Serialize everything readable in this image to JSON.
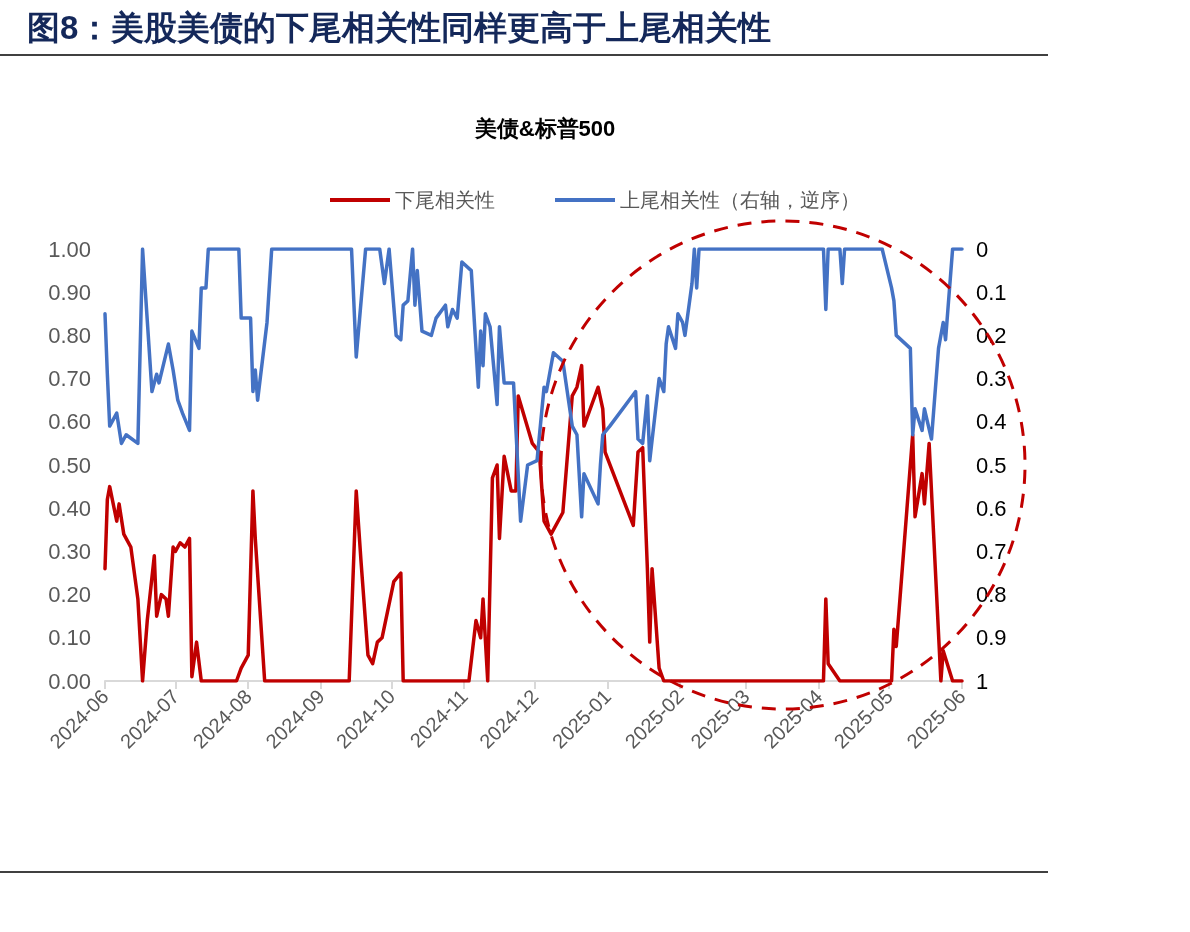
{
  "chart_data": {
    "type": "line",
    "title": "图8：美股美债的下尾相关性同样更高于上尾相关性",
    "subtitle": "美债&标普500",
    "legend": "top",
    "xlim": [
      "2024-06-01",
      "2025-06-01"
    ],
    "xticks": [
      "2024-06",
      "2024-07",
      "2024-08",
      "2024-09",
      "2024-10",
      "2024-11",
      "2024-12",
      "2025-01",
      "2025-02",
      "2025-03",
      "2025-04",
      "2025-05",
      "2025-06"
    ],
    "ylim": [
      0,
      1
    ],
    "yticks": [
      {
        "value": 0,
        "label": "0.00"
      },
      {
        "value": 0.1,
        "label": "0.10"
      },
      {
        "value": 0.2,
        "label": "0.20"
      },
      {
        "value": 0.3,
        "label": "0.30"
      },
      {
        "value": 0.4,
        "label": "0.40"
      },
      {
        "value": 0.5,
        "label": "0.50"
      },
      {
        "value": 0.6,
        "label": "0.60"
      },
      {
        "value": 0.7,
        "label": "0.70"
      },
      {
        "value": 0.8,
        "label": "0.80"
      },
      {
        "value": 0.9,
        "label": "0.90"
      },
      {
        "value": 1,
        "label": "1.00"
      }
    ],
    "y2lim": [
      1,
      0
    ],
    "y2ticks": [
      0,
      0.1,
      0.2,
      0.3,
      0.4,
      0.5,
      0.6,
      0.7,
      0.8,
      0.9,
      1
    ],
    "series": [
      {
        "name": "下尾相关性",
        "color": "#c00000",
        "x": [
          "2024-06-01",
          "2024-06-02",
          "2024-06-03",
          "2024-06-06",
          "2024-06-07",
          "2024-06-09",
          "2024-06-12",
          "2024-06-15",
          "2024-06-17",
          "2024-06-19",
          "2024-06-22",
          "2024-06-23",
          "2024-06-25",
          "2024-06-27",
          "2024-06-28",
          "2024-06-30",
          "2024-07-01",
          "2024-07-03",
          "2024-07-05",
          "2024-07-07",
          "2024-07-08",
          "2024-07-10",
          "2024-07-12",
          "2024-07-27",
          "2024-07-29",
          "2024-08-01",
          "2024-08-03",
          "2024-08-04",
          "2024-08-08",
          "2024-09-13",
          "2024-09-16",
          "2024-09-18",
          "2024-09-21",
          "2024-09-23",
          "2024-09-25",
          "2024-09-27",
          "2024-10-02",
          "2024-10-05",
          "2024-10-06",
          "2024-11-03",
          "2024-11-06",
          "2024-11-08",
          "2024-11-09",
          "2024-11-11",
          "2024-11-13",
          "2024-11-15",
          "2024-11-16",
          "2024-11-18",
          "2024-11-21",
          "2024-11-23",
          "2024-11-24",
          "2024-11-30",
          "2024-12-03",
          "2024-12-05",
          "2024-12-08",
          "2024-12-13",
          "2024-12-17",
          "2024-12-19",
          "2024-12-21",
          "2024-12-22",
          "2024-12-28",
          "2024-12-30",
          "2024-12-31",
          "2025-01-12",
          "2025-01-14",
          "2025-01-16",
          "2025-01-18",
          "2025-01-19",
          "2025-01-20",
          "2025-01-23",
          "2025-01-25",
          "2025-04-03",
          "2025-04-04",
          "2025-04-05",
          "2025-04-10",
          "2025-05-02",
          "2025-05-03",
          "2025-05-04",
          "2025-05-11",
          "2025-05-12",
          "2025-05-15",
          "2025-05-16",
          "2025-05-18",
          "2025-05-23",
          "2025-05-24",
          "2025-05-28",
          "2025-06-01"
        ],
        "values": [
          0.26,
          0.42,
          0.45,
          0.37,
          0.41,
          0.34,
          0.31,
          0.19,
          0,
          0.14,
          0.29,
          0.15,
          0.2,
          0.19,
          0.15,
          0.31,
          0.3,
          0.32,
          0.31,
          0.33,
          0.01,
          0.09,
          0,
          0,
          0.03,
          0.06,
          0.44,
          0.33,
          0,
          0,
          0.44,
          0.28,
          0.06,
          0.04,
          0.09,
          0.1,
          0.23,
          0.25,
          0,
          0,
          0.14,
          0.1,
          0.19,
          0,
          0.47,
          0.5,
          0.33,
          0.52,
          0.44,
          0.44,
          0.66,
          0.55,
          0.53,
          0.37,
          0.34,
          0.39,
          0.66,
          0.68,
          0.73,
          0.59,
          0.68,
          0.63,
          0.53,
          0.36,
          0.53,
          0.54,
          0.26,
          0.09,
          0.26,
          0.03,
          0,
          0,
          0.19,
          0.04,
          0,
          0,
          0.12,
          0.08,
          0.57,
          0.38,
          0.48,
          0.41,
          0.55,
          0,
          0.07,
          0,
          0
        ]
      },
      {
        "name": "上尾相关性（右轴，逆序）",
        "color": "#4472c4",
        "axis": "y2",
        "x": [
          "2024-06-01",
          "2024-06-02",
          "2024-06-03",
          "2024-06-06",
          "2024-06-08",
          "2024-06-10",
          "2024-06-15",
          "2024-06-17",
          "2024-06-21",
          "2024-06-23",
          "2024-06-24",
          "2024-06-28",
          "2024-06-30",
          "2024-07-02",
          "2024-07-04",
          "2024-07-07",
          "2024-07-08",
          "2024-07-11",
          "2024-07-12",
          "2024-07-14",
          "2024-07-15",
          "2024-07-28",
          "2024-07-29",
          "2024-08-02",
          "2024-08-03",
          "2024-08-04",
          "2024-08-05",
          "2024-08-09",
          "2024-08-11",
          "2024-09-14",
          "2024-09-16",
          "2024-09-20",
          "2024-09-26",
          "2024-09-28",
          "2024-09-30",
          "2024-10-03",
          "2024-10-05",
          "2024-10-06",
          "2024-10-08",
          "2024-10-10",
          "2024-10-11",
          "2024-10-12",
          "2024-10-14",
          "2024-10-18",
          "2024-10-20",
          "2024-10-24",
          "2024-10-25",
          "2024-10-27",
          "2024-10-29",
          "2024-10-31",
          "2024-11-04",
          "2024-11-07",
          "2024-11-08",
          "2024-11-09",
          "2024-11-10",
          "2024-11-12",
          "2024-11-15",
          "2024-11-16",
          "2024-11-18",
          "2024-11-22",
          "2024-11-25",
          "2024-11-28",
          "2024-12-02",
          "2024-12-05",
          "2024-12-06",
          "2024-12-09",
          "2024-12-13",
          "2024-12-17",
          "2024-12-19",
          "2024-12-21",
          "2024-12-22",
          "2024-12-28",
          "2024-12-29",
          "2024-12-30",
          "2025-01-02",
          "2025-01-13",
          "2025-01-14",
          "2025-01-16",
          "2025-01-18",
          "2025-01-19",
          "2025-01-23",
          "2025-01-25",
          "2025-01-26",
          "2025-01-27",
          "2025-01-30",
          "2025-01-31",
          "2025-02-02",
          "2025-02-03",
          "2025-02-06",
          "2025-02-07",
          "2025-02-08",
          "2025-02-09",
          "2025-04-03",
          "2025-04-04",
          "2025-04-05",
          "2025-04-10",
          "2025-04-11",
          "2025-04-12",
          "2025-04-28",
          "2025-05-02",
          "2025-05-03",
          "2025-05-04",
          "2025-05-10",
          "2025-05-11",
          "2025-05-12",
          "2025-05-15",
          "2025-05-16",
          "2025-05-19",
          "2025-05-22",
          "2025-05-24",
          "2025-05-25",
          "2025-05-26",
          "2025-05-28",
          "2025-06-01"
        ],
        "values": [
          0.15,
          0.29,
          0.41,
          0.38,
          0.45,
          0.43,
          0.45,
          0,
          0.33,
          0.29,
          0.31,
          0.22,
          0.28,
          0.35,
          0.38,
          0.42,
          0.19,
          0.23,
          0.09,
          0.09,
          0,
          0,
          0.16,
          0.16,
          0.33,
          0.28,
          0.35,
          0.17,
          0,
          0,
          0.25,
          0,
          0,
          0.08,
          0,
          0.2,
          0.21,
          0.13,
          0.12,
          0,
          0.13,
          0.05,
          0.19,
          0.2,
          0.16,
          0.13,
          0.18,
          0.14,
          0.16,
          0.03,
          0.05,
          0.32,
          0.19,
          0.27,
          0.15,
          0.18,
          0.36,
          0.18,
          0.31,
          0.31,
          0.63,
          0.5,
          0.49,
          0.32,
          0.33,
          0.24,
          0.26,
          0.41,
          0.43,
          0.62,
          0.52,
          0.59,
          0.5,
          0.43,
          0.41,
          0.33,
          0.44,
          0.45,
          0.34,
          0.49,
          0.3,
          0.33,
          0.22,
          0.18,
          0.23,
          0.15,
          0.17,
          0.2,
          0.08,
          0,
          0.09,
          0,
          0,
          0.14,
          0,
          0,
          0.08,
          0,
          0,
          0.09,
          0.12,
          0.2,
          0.23,
          0.43,
          0.37,
          0.42,
          0.37,
          0.44,
          0.23,
          0.17,
          0.21,
          0.14,
          0,
          0
        ]
      }
    ]
  }
}
